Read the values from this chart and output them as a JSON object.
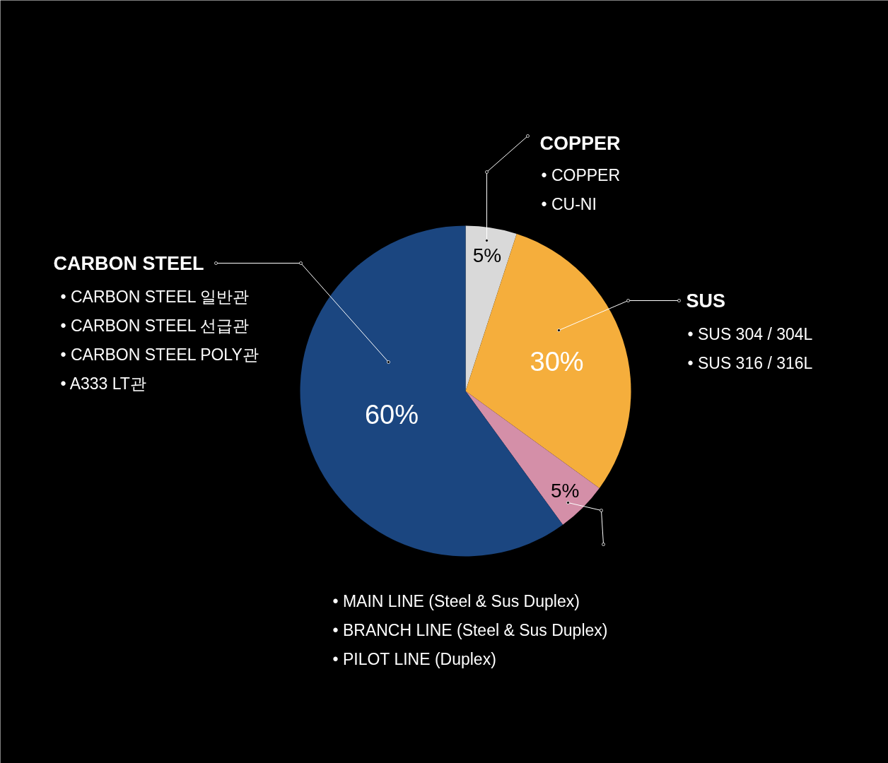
{
  "chart_data": {
    "type": "pie",
    "categories": [
      "COPPER",
      "SUS",
      null,
      "CARBON STEEL"
    ],
    "values": [
      5,
      30,
      5,
      60
    ],
    "colors": [
      "#d9d9d9",
      "#f5ae3c",
      "#d48fa8",
      "#1b4680"
    ],
    "value_labels": [
      "5%",
      "30%",
      "5%",
      "60%"
    ],
    "annotations": [
      "•  COPPER\n•  CU-NI",
      "•  SUS 304 / 304L\n•  SUS 316 / 316L",
      "•  MAIN LINE (Steel & Sus Duplex)\n•  BRANCH LINE (Steel & Sus Duplex)\n•  PILOT LINE (Duplex)",
      "•  CARBON STEEL 일반관\n•  CARBON STEEL 선급관\n•  CARBON STEEL POLY관\n•  A333 LT관"
    ]
  }
}
